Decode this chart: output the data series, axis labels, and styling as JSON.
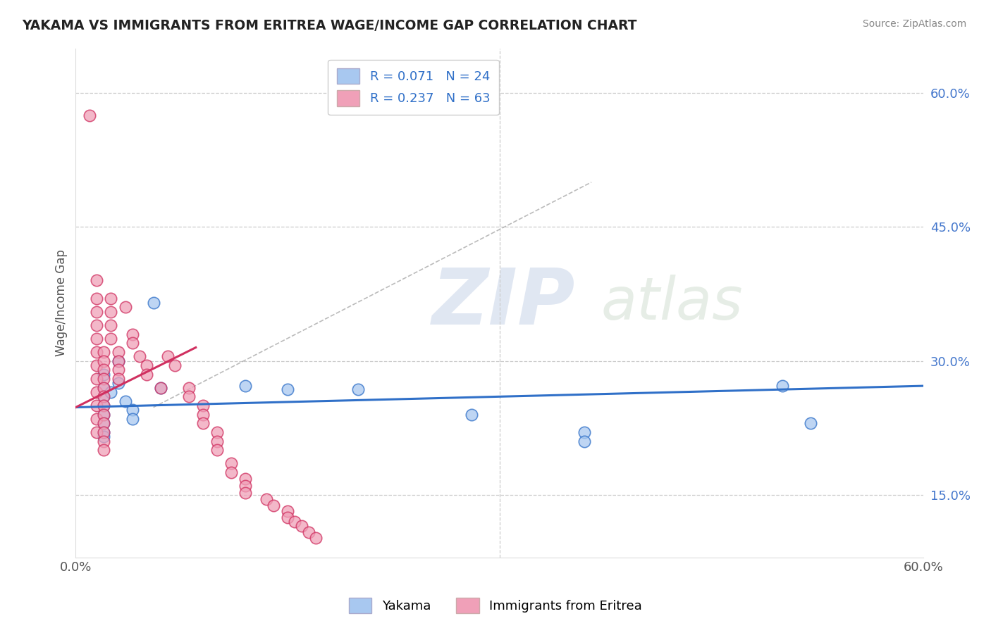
{
  "title": "YAKAMA VS IMMIGRANTS FROM ERITREA WAGE/INCOME GAP CORRELATION CHART",
  "source": "Source: ZipAtlas.com",
  "ylabel": "Wage/Income Gap",
  "xlim": [
    0.0,
    0.6
  ],
  "ylim": [
    0.08,
    0.65
  ],
  "yticks": [
    0.15,
    0.3,
    0.45,
    0.6
  ],
  "ytick_labels": [
    "15.0%",
    "30.0%",
    "45.0%",
    "60.0%"
  ],
  "legend_r1": "R = 0.071",
  "legend_n1": "N = 24",
  "legend_r2": "R = 0.237",
  "legend_n2": "N = 63",
  "color_blue": "#A8C8F0",
  "color_pink": "#F0A0B8",
  "line_blue": "#3070C8",
  "line_pink": "#D03060",
  "background": "#FFFFFF",
  "blue_line_x": [
    0.0,
    0.6
  ],
  "blue_line_y": [
    0.248,
    0.272
  ],
  "pink_line_x": [
    0.0,
    0.085
  ],
  "pink_line_y": [
    0.248,
    0.315
  ],
  "dash_line_x": [
    0.055,
    0.365
  ],
  "dash_line_y": [
    0.248,
    0.5
  ],
  "blue_points": [
    [
      0.02,
      0.285
    ],
    [
      0.02,
      0.27
    ],
    [
      0.02,
      0.26
    ],
    [
      0.02,
      0.25
    ],
    [
      0.02,
      0.24
    ],
    [
      0.02,
      0.23
    ],
    [
      0.02,
      0.22
    ],
    [
      0.02,
      0.215
    ],
    [
      0.025,
      0.265
    ],
    [
      0.03,
      0.3
    ],
    [
      0.03,
      0.275
    ],
    [
      0.035,
      0.255
    ],
    [
      0.04,
      0.245
    ],
    [
      0.04,
      0.235
    ],
    [
      0.055,
      0.365
    ],
    [
      0.06,
      0.27
    ],
    [
      0.12,
      0.272
    ],
    [
      0.15,
      0.268
    ],
    [
      0.2,
      0.268
    ],
    [
      0.28,
      0.24
    ],
    [
      0.36,
      0.22
    ],
    [
      0.36,
      0.21
    ],
    [
      0.5,
      0.272
    ],
    [
      0.52,
      0.23
    ]
  ],
  "pink_points": [
    [
      0.01,
      0.575
    ],
    [
      0.015,
      0.39
    ],
    [
      0.015,
      0.37
    ],
    [
      0.015,
      0.355
    ],
    [
      0.015,
      0.34
    ],
    [
      0.015,
      0.325
    ],
    [
      0.015,
      0.31
    ],
    [
      0.015,
      0.295
    ],
    [
      0.015,
      0.28
    ],
    [
      0.015,
      0.265
    ],
    [
      0.015,
      0.25
    ],
    [
      0.015,
      0.235
    ],
    [
      0.015,
      0.22
    ],
    [
      0.02,
      0.31
    ],
    [
      0.02,
      0.3
    ],
    [
      0.02,
      0.29
    ],
    [
      0.02,
      0.28
    ],
    [
      0.02,
      0.27
    ],
    [
      0.02,
      0.26
    ],
    [
      0.02,
      0.25
    ],
    [
      0.02,
      0.24
    ],
    [
      0.02,
      0.23
    ],
    [
      0.02,
      0.22
    ],
    [
      0.02,
      0.21
    ],
    [
      0.02,
      0.2
    ],
    [
      0.025,
      0.37
    ],
    [
      0.025,
      0.355
    ],
    [
      0.025,
      0.34
    ],
    [
      0.025,
      0.325
    ],
    [
      0.03,
      0.31
    ],
    [
      0.03,
      0.3
    ],
    [
      0.03,
      0.29
    ],
    [
      0.03,
      0.28
    ],
    [
      0.035,
      0.36
    ],
    [
      0.04,
      0.33
    ],
    [
      0.04,
      0.32
    ],
    [
      0.045,
      0.305
    ],
    [
      0.05,
      0.295
    ],
    [
      0.05,
      0.285
    ],
    [
      0.06,
      0.27
    ],
    [
      0.065,
      0.305
    ],
    [
      0.07,
      0.295
    ],
    [
      0.08,
      0.27
    ],
    [
      0.08,
      0.26
    ],
    [
      0.09,
      0.25
    ],
    [
      0.09,
      0.24
    ],
    [
      0.09,
      0.23
    ],
    [
      0.1,
      0.22
    ],
    [
      0.1,
      0.21
    ],
    [
      0.1,
      0.2
    ],
    [
      0.11,
      0.185
    ],
    [
      0.11,
      0.175
    ],
    [
      0.12,
      0.168
    ],
    [
      0.12,
      0.16
    ],
    [
      0.12,
      0.152
    ],
    [
      0.135,
      0.145
    ],
    [
      0.14,
      0.138
    ],
    [
      0.15,
      0.132
    ],
    [
      0.15,
      0.125
    ],
    [
      0.155,
      0.12
    ],
    [
      0.16,
      0.115
    ],
    [
      0.165,
      0.108
    ],
    [
      0.17,
      0.102
    ]
  ]
}
